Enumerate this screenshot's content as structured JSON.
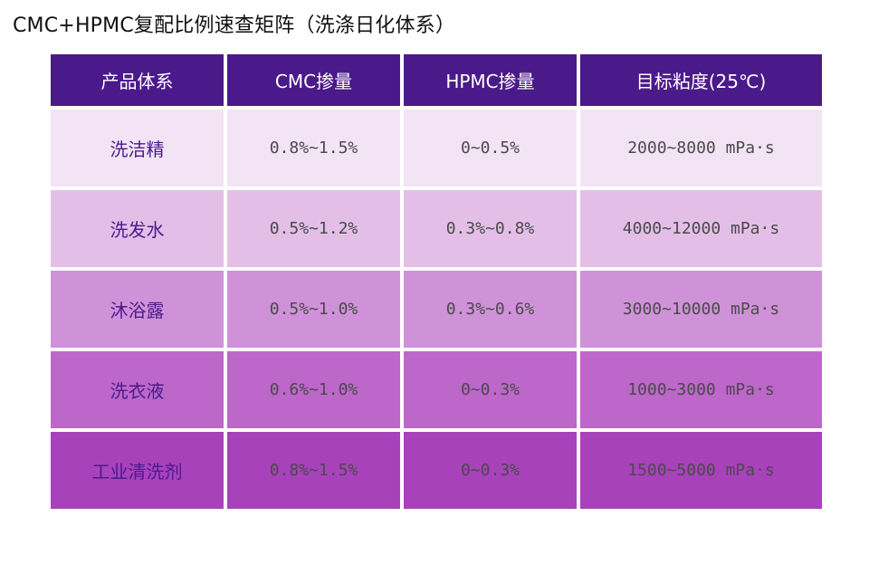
{
  "title": "CMC+HPMC复配比例速查矩阵（洗涤日化体系）",
  "colors": {
    "header_bg": "#4b1a8a",
    "row_bgs": [
      "#f3e4f5",
      "#e3bfe8",
      "#cf92d8",
      "#bd67cb",
      "#a842bb"
    ]
  },
  "chart_data": {
    "type": "table",
    "columns": [
      "产品体系",
      "CMC掺量",
      "HPMC掺量",
      "目标粘度(25℃)"
    ],
    "rows": [
      [
        "洗洁精",
        "0.8%~1.5%",
        "0~0.5%",
        "2000~8000 mPa·s"
      ],
      [
        "洗发水",
        "0.5%~1.2%",
        "0.3%~0.8%",
        "4000~12000 mPa·s"
      ],
      [
        "沐浴露",
        "0.5%~1.0%",
        "0.3%~0.6%",
        "3000~10000 mPa·s"
      ],
      [
        "洗衣液",
        "0.6%~1.0%",
        "0~0.3%",
        "1000~3000 mPa·s"
      ],
      [
        "工业清洗剂",
        "0.8%~1.5%",
        "0~0.3%",
        "1500~5000 mPa·s"
      ]
    ]
  }
}
